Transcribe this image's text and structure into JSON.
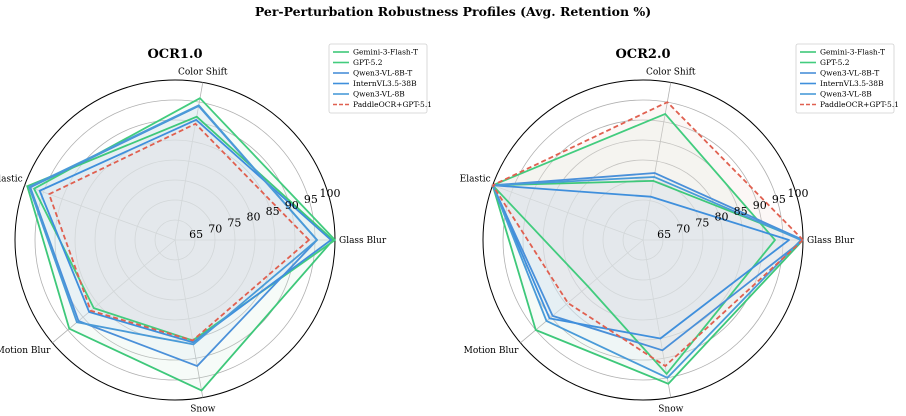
{
  "title": "Per-Perturbation Robustness Profiles (Avg. Retention %)",
  "chart_data": [
    {
      "type": "radar",
      "title": "OCR1.0",
      "axes": [
        "Glass Blur",
        "Color Shift",
        "Elastic",
        "Motion Blur",
        "Snow"
      ],
      "r_ticks": [
        65,
        70,
        75,
        80,
        85,
        90,
        95,
        100
      ],
      "r_tick_labels": [
        "65",
        "70",
        "75",
        "80",
        "85",
        "90",
        "95",
        "100"
      ],
      "rlim": [
        60,
        100
      ],
      "grid": true,
      "legend_position": "top-right",
      "series": [
        {
          "name": "Gemini-3-Flash-T",
          "values": [
            99.5,
            91.3,
            99.3,
            94.5,
            98.2
          ],
          "color": "#3ec87a",
          "dash": false,
          "fill": "#d4efe1"
        },
        {
          "name": "GPT-5.2",
          "values": [
            100.0,
            96.0,
            97.5,
            86.5,
            85.5
          ],
          "color": "#42cc7e",
          "dash": false,
          "fill": "#d4efe1"
        },
        {
          "name": "Qwen3-VL-8B-T",
          "values": [
            95.5,
            94.0,
            98.5,
            91.5,
            92.0
          ],
          "color": "#4a90d9",
          "dash": false,
          "fill": "#d8e4f0"
        },
        {
          "name": "InternVL3.5-38B",
          "values": [
            99.0,
            90.5,
            96.0,
            88.0,
            86.0
          ],
          "color": "#3f8fdc",
          "dash": false,
          "fill": "#d8e4f0"
        },
        {
          "name": "Qwen3-VL-8B",
          "values": [
            95.5,
            94.2,
            98.8,
            92.0,
            86.5
          ],
          "color": "#4a9bd8",
          "dash": false,
          "fill": "#d8e4f0"
        },
        {
          "name": "PaddleOCR+GPT-5.1",
          "values": [
            93.5,
            89.5,
            93.5,
            87.5,
            85.5
          ],
          "color": "#e06050",
          "dash": true,
          "fill": "#f2dcd6"
        }
      ]
    },
    {
      "type": "radar",
      "title": "OCR2.0",
      "axes": [
        "Glass Blur",
        "Color Shift",
        "Elastic",
        "Motion Blur",
        "Snow"
      ],
      "r_ticks": [
        65,
        70,
        75,
        80,
        85,
        90,
        95,
        100
      ],
      "r_tick_labels": [
        "65",
        "70",
        "75",
        "80",
        "85",
        "90",
        "95",
        "100"
      ],
      "rlim": [
        60,
        100
      ],
      "grid": true,
      "legend_position": "top-right",
      "series": [
        {
          "name": "Gemini-3-Flash-T",
          "values": [
            100.0,
            75.0,
            100.0,
            95.0,
            96.5
          ],
          "color": "#3ec87a",
          "dash": false,
          "fill": "#d4efe1"
        },
        {
          "name": "GPT-5.2",
          "values": [
            93.0,
            92.0,
            100.0,
            78.0,
            94.0
          ],
          "color": "#42cc7e",
          "dash": false,
          "fill": "#d4efe1"
        },
        {
          "name": "Qwen3-VL-8B-T",
          "values": [
            100.0,
            77.0,
            100.0,
            89.5,
            88.0
          ],
          "color": "#4a90d9",
          "dash": false,
          "fill": "#d8e4f0"
        },
        {
          "name": "InternVL3.5-38B",
          "values": [
            96.5,
            71.0,
            100.0,
            90.5,
            85.0
          ],
          "color": "#3f8fdc",
          "dash": false,
          "fill": "#d8e4f0"
        },
        {
          "name": "Qwen3-VL-8B",
          "values": [
            99.5,
            76.0,
            100.0,
            91.5,
            95.0
          ],
          "color": "#4a9bd8",
          "dash": false,
          "fill": "#d8e4f0"
        },
        {
          "name": "PaddleOCR+GPT-5.1",
          "values": [
            100.0,
            95.0,
            100.0,
            84.5,
            92.0
          ],
          "color": "#e06050",
          "dash": true,
          "fill": "#f2dcd6"
        }
      ]
    }
  ]
}
